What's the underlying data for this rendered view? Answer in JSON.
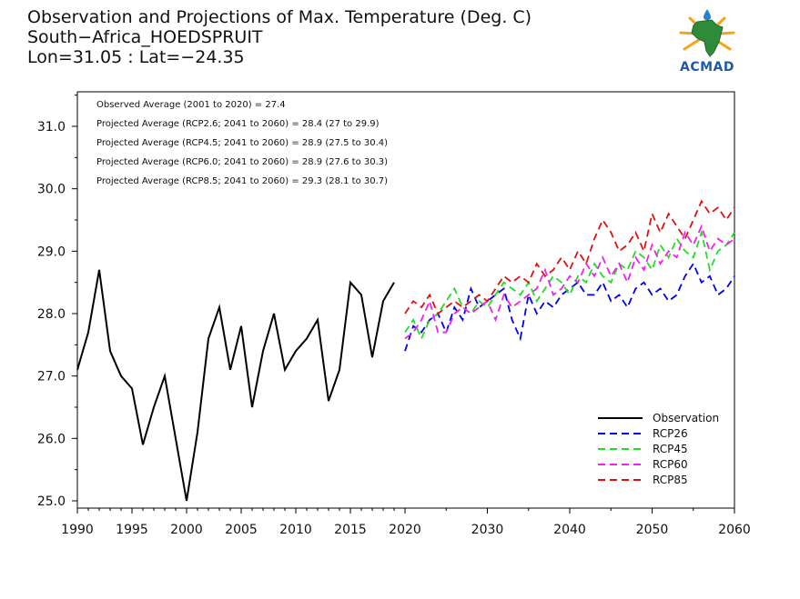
{
  "header": {
    "title_line1": "Observation and Projections of Max. Temperature (Deg. C)",
    "title_line2": "South−Africa_HOEDSPRUIT",
    "title_line3": "Lon=31.05 : Lat=−24.35"
  },
  "logo": {
    "text": "ACMAD",
    "icon": "africa-map-logo-icon",
    "colors": {
      "map": "#2e8b3a",
      "rays": "#f2a51a",
      "drop": "#2a7fd0",
      "text": "#1f5aa8"
    }
  },
  "chart_data": {
    "type": "line",
    "title": "Observation and Projections of Max. Temperature (Deg. C)",
    "xlim": [
      1990,
      2060
    ],
    "ylim": [
      24.9,
      31.6
    ],
    "x_ticks": [
      1990,
      1995,
      2000,
      2005,
      2010,
      2015,
      2020,
      2030,
      2040,
      2050,
      2060
    ],
    "y_ticks": [
      25.0,
      26.0,
      27.0,
      28.0,
      29.0,
      30.0,
      31.0
    ],
    "y_tick_labels": [
      "25.0",
      "26.0",
      "27.0",
      "28.0",
      "29.0",
      "30.0",
      "31.0"
    ],
    "annotations": [
      "Observed Average (2001 to 2020) = 27.4",
      "Projected Average (RCP2.6; 2041 to 2060) = 28.4 (27 to 29.9)",
      "Projected Average (RCP4.5; 2041 to 2060) = 28.9 (27.5 to 30.4)",
      "Projected Average (RCP6.0; 2041 to 2060) = 28.9 (27.6 to 30.3)",
      "Projected Average (RCP8.5; 2041 to 2060) = 29.3 (28.1 to 30.7)"
    ],
    "legend_position": "bottom-right",
    "observation": {
      "name": "Observation",
      "color": "#000000",
      "x": [
        1990,
        1991,
        1992,
        1993,
        1994,
        1995,
        1996,
        1997,
        1998,
        1999,
        2000,
        2001,
        2002,
        2003,
        2004,
        2005,
        2006,
        2007,
        2008,
        2009,
        2010,
        2011,
        2012,
        2013,
        2014,
        2015,
        2016,
        2017,
        2018,
        2019
      ],
      "y": [
        27.1,
        27.7,
        28.7,
        27.4,
        27.0,
        26.8,
        25.9,
        26.5,
        27.0,
        26.0,
        25.0,
        26.1,
        27.6,
        28.1,
        27.1,
        27.8,
        26.5,
        27.4,
        28.0,
        27.1,
        27.4,
        27.6,
        27.9,
        26.6,
        27.1,
        28.5,
        28.3,
        27.3,
        28.2,
        28.5
      ]
    },
    "series": [
      {
        "name": "RCP26",
        "color": "#0000ee",
        "x": [
          2020,
          2021,
          2022,
          2023,
          2024,
          2025,
          2026,
          2027,
          2028,
          2029,
          2030,
          2031,
          2032,
          2033,
          2034,
          2035,
          2036,
          2037,
          2038,
          2039,
          2040,
          2041,
          2042,
          2043,
          2044,
          2045,
          2046,
          2047,
          2048,
          2049,
          2050,
          2051,
          2052,
          2053,
          2054,
          2055,
          2056,
          2057,
          2058,
          2059,
          2060
        ],
        "y": [
          27.4,
          27.8,
          27.7,
          27.9,
          28.0,
          27.7,
          28.1,
          27.9,
          28.4,
          28.1,
          28.2,
          28.3,
          28.4,
          27.9,
          27.6,
          28.3,
          28.0,
          28.2,
          28.1,
          28.3,
          28.4,
          28.5,
          28.3,
          28.3,
          28.5,
          28.2,
          28.3,
          28.1,
          28.4,
          28.5,
          28.3,
          28.4,
          28.2,
          28.3,
          28.6,
          28.8,
          28.5,
          28.6,
          28.3,
          28.4,
          28.6
        ]
      },
      {
        "name": "RCP45",
        "color": "#22dd22",
        "x": [
          2020,
          2021,
          2022,
          2023,
          2024,
          2025,
          2026,
          2027,
          2028,
          2029,
          2030,
          2031,
          2032,
          2033,
          2034,
          2035,
          2036,
          2037,
          2038,
          2039,
          2040,
          2041,
          2042,
          2043,
          2044,
          2045,
          2046,
          2047,
          2048,
          2049,
          2050,
          2051,
          2052,
          2053,
          2054,
          2055,
          2056,
          2057,
          2058,
          2059,
          2060
        ],
        "y": [
          27.7,
          27.9,
          27.6,
          27.9,
          28.0,
          28.2,
          28.4,
          28.1,
          28.0,
          28.2,
          28.1,
          28.3,
          28.5,
          28.4,
          28.3,
          28.5,
          28.2,
          28.4,
          28.6,
          28.5,
          28.3,
          28.6,
          28.5,
          28.8,
          28.6,
          28.5,
          28.8,
          28.7,
          29.0,
          28.9,
          28.7,
          29.1,
          28.9,
          29.2,
          29.0,
          28.9,
          29.3,
          28.7,
          29.0,
          29.1,
          29.3
        ]
      },
      {
        "name": "RCP60",
        "color": "#ee22ee",
        "x": [
          2020,
          2021,
          2022,
          2023,
          2024,
          2025,
          2026,
          2027,
          2028,
          2029,
          2030,
          2031,
          2032,
          2033,
          2034,
          2035,
          2036,
          2037,
          2038,
          2039,
          2040,
          2041,
          2042,
          2043,
          2044,
          2045,
          2046,
          2047,
          2048,
          2049,
          2050,
          2051,
          2052,
          2053,
          2054,
          2055,
          2056,
          2057,
          2058,
          2059,
          2060
        ],
        "y": [
          27.6,
          27.7,
          27.9,
          28.2,
          27.7,
          27.7,
          28.0,
          28.1,
          28.0,
          28.1,
          28.2,
          27.9,
          28.3,
          28.1,
          28.2,
          28.3,
          28.4,
          28.7,
          28.3,
          28.4,
          28.6,
          28.5,
          28.8,
          28.6,
          28.9,
          28.6,
          28.8,
          28.5,
          28.9,
          28.7,
          29.1,
          28.8,
          29.0,
          28.9,
          29.3,
          29.1,
          29.4,
          29.0,
          29.2,
          29.1,
          29.2
        ]
      },
      {
        "name": "RCP85",
        "color": "#dd1111",
        "x": [
          2020,
          2021,
          2022,
          2023,
          2024,
          2025,
          2026,
          2027,
          2028,
          2029,
          2030,
          2031,
          2032,
          2033,
          2034,
          2035,
          2036,
          2037,
          2038,
          2039,
          2040,
          2041,
          2042,
          2043,
          2044,
          2045,
          2046,
          2047,
          2048,
          2049,
          2050,
          2051,
          2052,
          2053,
          2054,
          2055,
          2056,
          2057,
          2058,
          2059,
          2060
        ],
        "y": [
          28.0,
          28.2,
          28.1,
          28.3,
          28.0,
          28.1,
          28.2,
          28.1,
          28.2,
          28.3,
          28.2,
          28.4,
          28.6,
          28.5,
          28.6,
          28.5,
          28.8,
          28.6,
          28.7,
          28.9,
          28.7,
          29.0,
          28.8,
          29.2,
          29.5,
          29.3,
          29.0,
          29.1,
          29.3,
          29.0,
          29.6,
          29.3,
          29.6,
          29.4,
          29.2,
          29.5,
          29.8,
          29.6,
          29.7,
          29.5,
          29.7
        ]
      }
    ]
  }
}
